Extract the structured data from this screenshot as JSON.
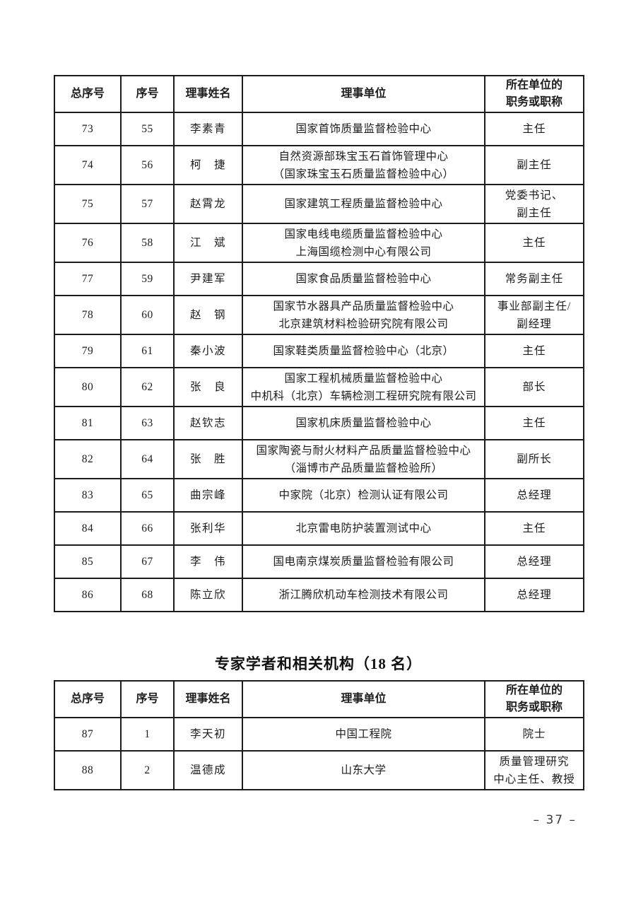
{
  "header": {
    "col1": "总序号",
    "col2": "序号",
    "col3": "理事姓名",
    "col4": "理事单位",
    "col5": "所在单位的\n职务或职称"
  },
  "section2_title": "专家学者和相关机构（18 名）",
  "table1": {
    "rows": [
      {
        "no": "73",
        "sub": "55",
        "name": "李素青",
        "unit": "国家首饰质量监督检验中心",
        "title": "主任"
      },
      {
        "no": "74",
        "sub": "56",
        "name": "柯　捷",
        "unit": "自然资源部珠宝玉石首饰管理中心\n（国家珠宝玉石质量监督检验中心）",
        "title": "副主任"
      },
      {
        "no": "75",
        "sub": "57",
        "name": "赵霄龙",
        "unit": "国家建筑工程质量监督检验中心",
        "title": "党委书记、\n副主任"
      },
      {
        "no": "76",
        "sub": "58",
        "name": "江　斌",
        "unit": "国家电线电缆质量监督检验中心\n上海国缆检测中心有限公司",
        "title": "主任"
      },
      {
        "no": "77",
        "sub": "59",
        "name": "尹建军",
        "unit": "国家食品质量监督检验中心",
        "title": "常务副主任"
      },
      {
        "no": "78",
        "sub": "60",
        "name": "赵　钢",
        "unit": "国家节水器具产品质量监督检验中心\n北京建筑材料检验研究院有限公司",
        "title": "事业部副主任/\n副经理"
      },
      {
        "no": "79",
        "sub": "61",
        "name": "秦小波",
        "unit": "国家鞋类质量监督检验中心（北京）",
        "title": "主任"
      },
      {
        "no": "80",
        "sub": "62",
        "name": "张　良",
        "unit": "国家工程机械质量监督检验中心\n中机科（北京）车辆检测工程研究院有限公司",
        "title": "部长"
      },
      {
        "no": "81",
        "sub": "63",
        "name": "赵钦志",
        "unit": "国家机床质量监督检验中心",
        "title": "主任"
      },
      {
        "no": "82",
        "sub": "64",
        "name": "张　胜",
        "unit": "国家陶瓷与耐火材料产品质量监督检验中心\n（淄博市产品质量监督检验所）",
        "title": "副所长"
      },
      {
        "no": "83",
        "sub": "65",
        "name": "曲宗峰",
        "unit": "中家院（北京）检测认证有限公司",
        "title": "总经理"
      },
      {
        "no": "84",
        "sub": "66",
        "name": "张利华",
        "unit": "北京雷电防护装置测试中心",
        "title": "主任"
      },
      {
        "no": "85",
        "sub": "67",
        "name": "李　伟",
        "unit": "国电南京煤炭质量监督检验有限公司",
        "title": "总经理"
      },
      {
        "no": "86",
        "sub": "68",
        "name": "陈立欣",
        "unit": "浙江腾欣机动车检测技术有限公司",
        "title": "总经理"
      }
    ]
  },
  "table2": {
    "rows": [
      {
        "no": "87",
        "sub": "1",
        "name": "李天初",
        "unit": "中国工程院",
        "title": "院士"
      },
      {
        "no": "88",
        "sub": "2",
        "name": "温德成",
        "unit": "山东大学",
        "title": "质量管理研究\n中心主任、教授"
      }
    ]
  },
  "page": {
    "number_label": "– 37 –"
  }
}
